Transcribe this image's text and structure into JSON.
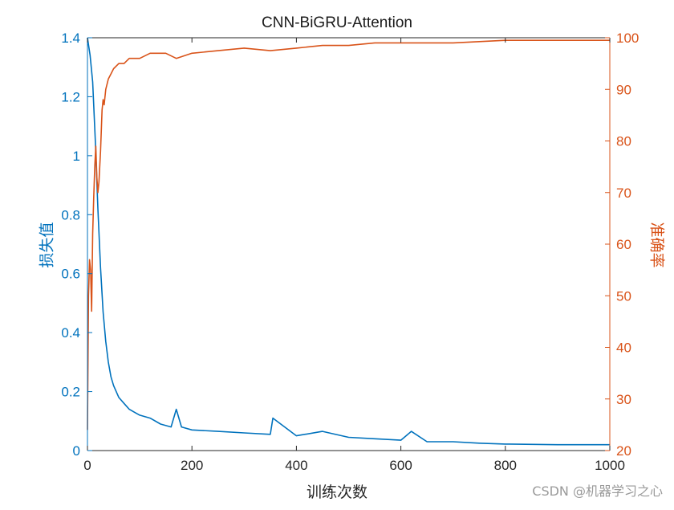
{
  "watermark": "CSDN @机器学习之心",
  "chart_data": {
    "type": "line",
    "title": "CNN-BiGRU-Attention",
    "xlabel": "训练次数",
    "ylabel": "损失值",
    "ylabel_right": "准确率",
    "xlim": [
      0,
      1000
    ],
    "ylim": [
      0,
      1.4
    ],
    "ylim_right": [
      20,
      100
    ],
    "x_ticks": [
      "0",
      "200",
      "400",
      "600",
      "800",
      "1000"
    ],
    "y_ticks": [
      "0",
      "0.2",
      "0.4",
      "0.6",
      "0.8",
      "1",
      "1.2",
      "1.4"
    ],
    "y_ticks_right": [
      "20",
      "30",
      "40",
      "50",
      "60",
      "70",
      "80",
      "90",
      "100"
    ],
    "grid": false,
    "colors": {
      "loss": "#0072BD",
      "accuracy": "#D95319",
      "axis": "#262626"
    },
    "series": [
      {
        "axis": "left",
        "x": [
          0,
          5,
          10,
          15,
          20,
          25,
          30,
          35,
          40,
          45,
          50,
          60,
          70,
          80,
          90,
          100,
          120,
          140,
          160,
          170,
          180,
          200,
          250,
          300,
          350,
          355,
          400,
          450,
          500,
          550,
          600,
          620,
          650,
          700,
          750,
          800,
          900,
          1000
        ],
        "values": [
          1.4,
          1.34,
          1.25,
          1.05,
          0.82,
          0.62,
          0.47,
          0.37,
          0.3,
          0.25,
          0.22,
          0.18,
          0.16,
          0.14,
          0.13,
          0.12,
          0.11,
          0.09,
          0.08,
          0.14,
          0.08,
          0.07,
          0.065,
          0.06,
          0.055,
          0.11,
          0.05,
          0.065,
          0.045,
          0.04,
          0.035,
          0.065,
          0.03,
          0.03,
          0.025,
          0.022,
          0.02,
          0.02
        ]
      },
      {
        "axis": "right",
        "x": [
          0,
          2,
          4,
          6,
          8,
          10,
          12,
          14,
          16,
          18,
          20,
          22,
          25,
          28,
          30,
          32,
          35,
          40,
          45,
          50,
          60,
          70,
          80,
          90,
          100,
          120,
          150,
          170,
          200,
          250,
          300,
          350,
          400,
          450,
          500,
          550,
          600,
          700,
          800,
          900,
          1000
        ],
        "values": [
          24,
          50,
          57,
          55,
          47,
          62,
          69,
          75,
          79,
          73,
          70,
          72,
          78,
          86,
          88,
          87,
          90,
          92,
          93,
          94,
          95,
          95,
          96,
          96,
          96,
          97,
          97,
          96,
          97,
          97.5,
          98,
          97.5,
          98,
          98.5,
          98.5,
          99,
          99,
          99,
          99.5,
          99.5,
          99.5
        ]
      }
    ]
  }
}
